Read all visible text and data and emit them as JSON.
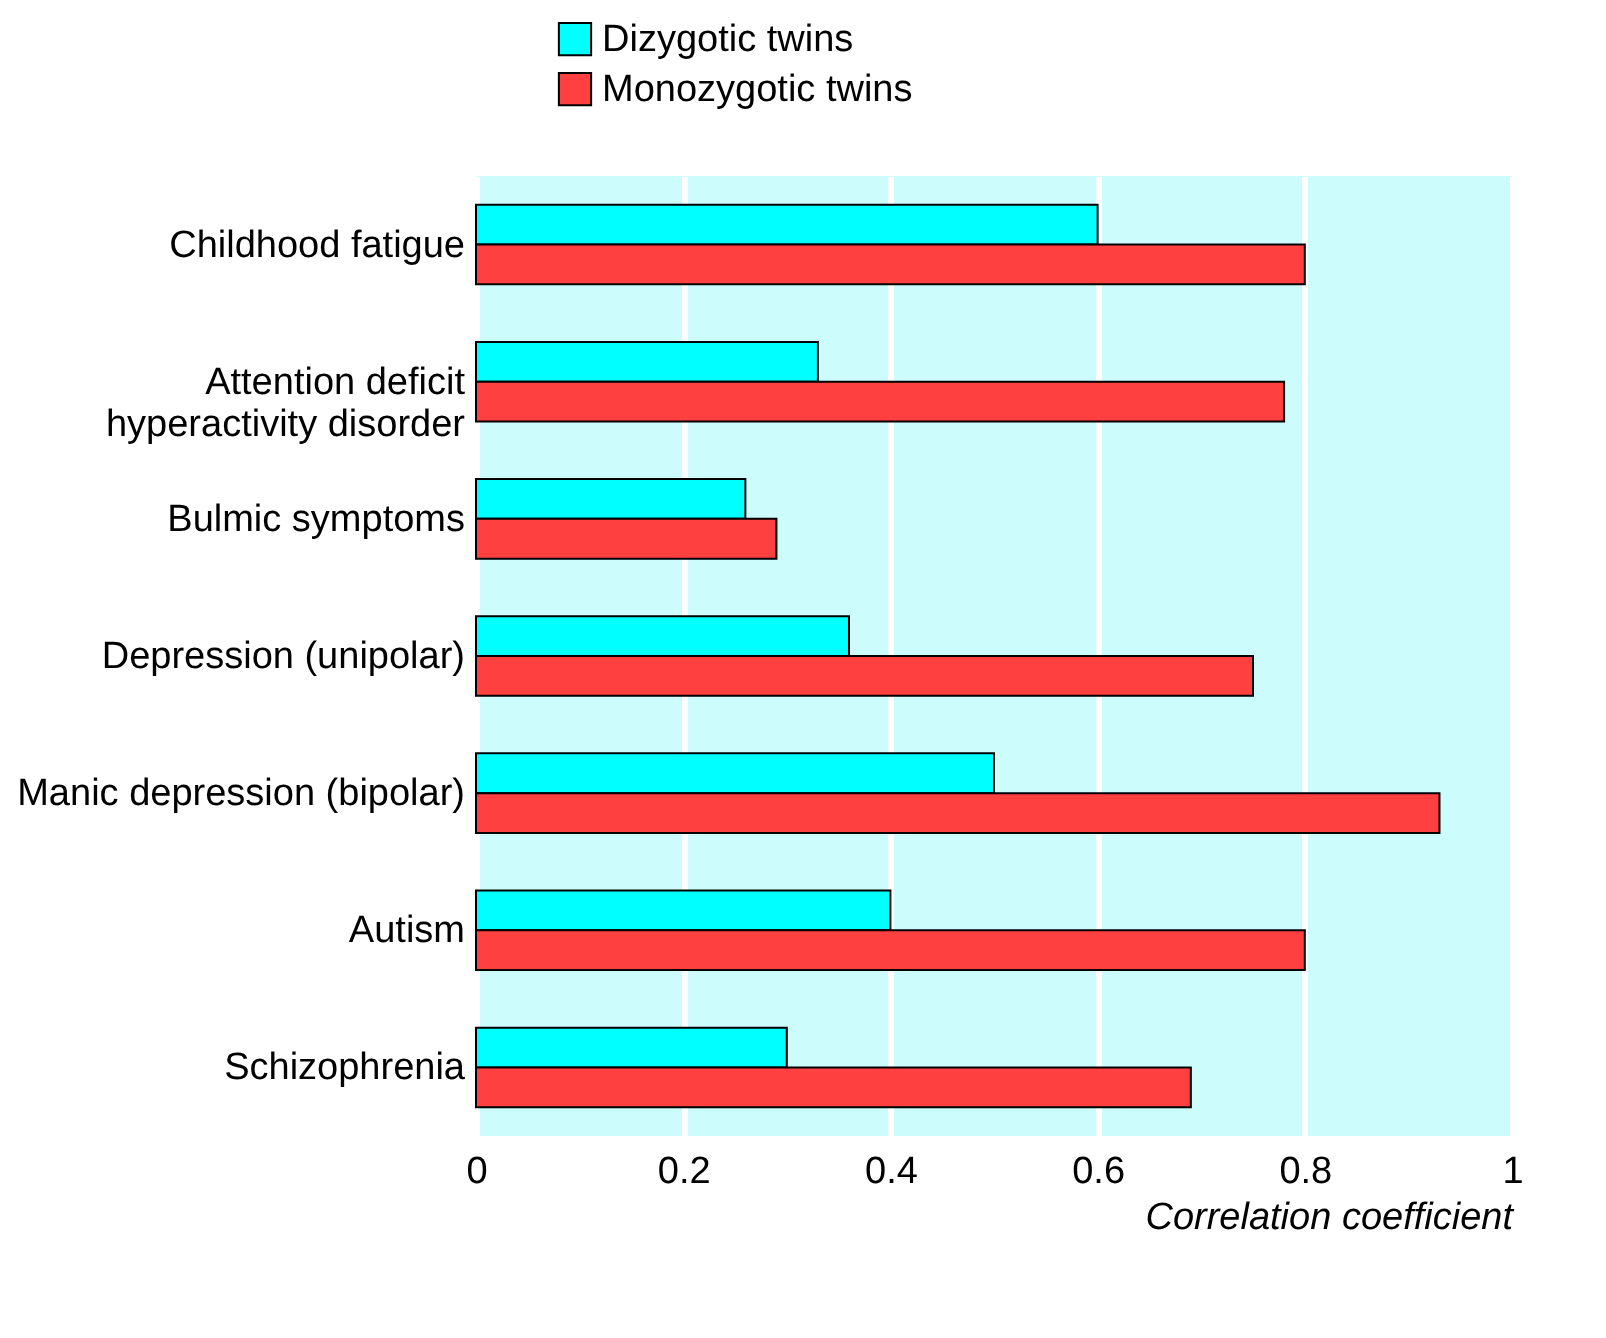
{
  "chart_data": {
    "type": "bar",
    "orientation": "horizontal",
    "xlabel": "Correlation coefficient",
    "categories": [
      "Childhood fatigue",
      "Attention deficit\nhyperactivity disorder",
      "Bulmic symptoms",
      "Depression (unipolar)",
      "Manic depression (bipolar)",
      "Autism",
      "Schizophrenia"
    ],
    "series": [
      {
        "name": "Dizygotic twins",
        "color": "#00ffff",
        "values": [
          0.6,
          0.33,
          0.26,
          0.36,
          0.5,
          0.4,
          0.3
        ]
      },
      {
        "name": "Monozygotic twins",
        "color": "#ff4040",
        "values": [
          0.8,
          0.78,
          0.29,
          0.75,
          0.93,
          0.8,
          0.69
        ]
      }
    ],
    "xlim": [
      0,
      1
    ],
    "xticks": [
      0,
      0.2,
      0.4,
      0.6,
      0.8,
      1
    ],
    "grid": "x",
    "legend": "top left"
  }
}
